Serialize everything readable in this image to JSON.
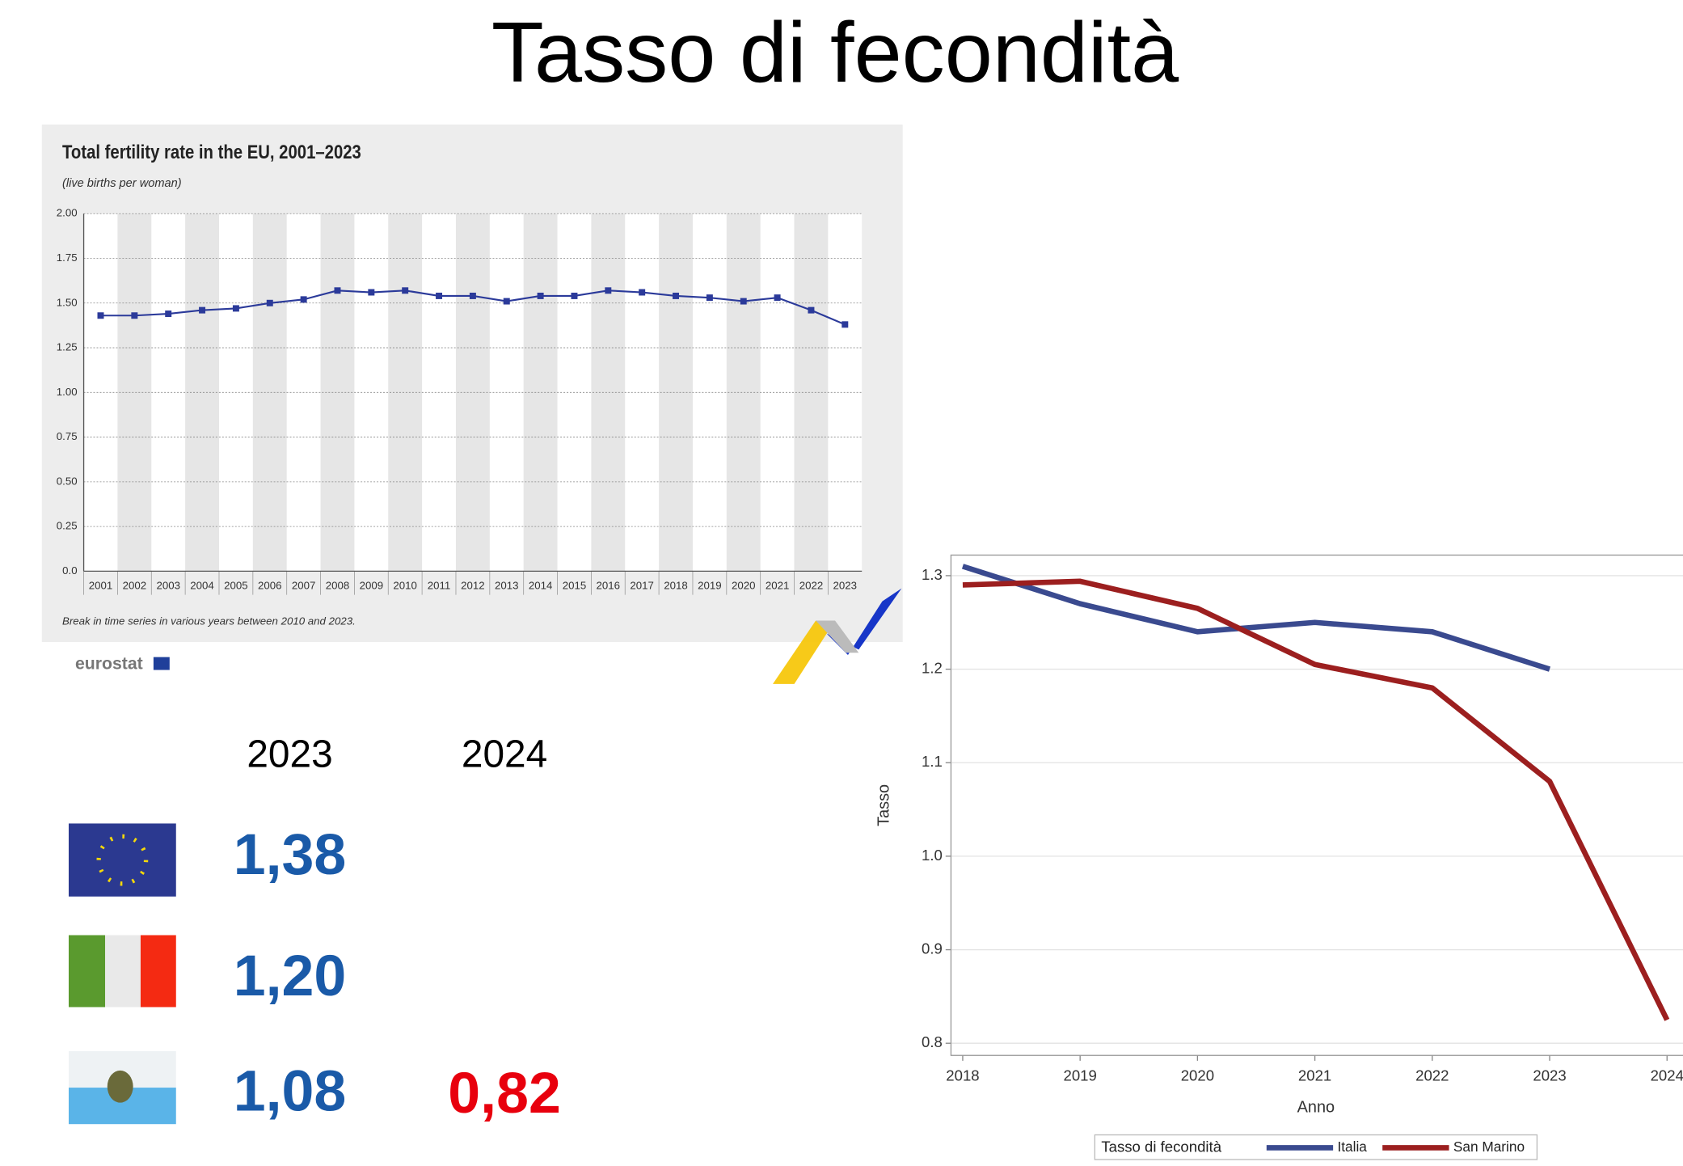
{
  "slide": {
    "title": "Tasso di fecondità",
    "table": {
      "headers": [
        "2023",
        "2024"
      ],
      "rows": [
        [
          "1,38"
        ],
        [
          "1,20"
        ],
        [
          "1,08",
          "0,82"
        ]
      ]
    }
  },
  "chart_data": [
    {
      "type": "line",
      "title": "Total fertility rate in the EU, 2001–2023",
      "subtitle": "(live births per woman)",
      "note": "Break in time series in various years between 2010 and 2023.",
      "source": "eurostat",
      "categories": [
        "2001",
        "2002",
        "2003",
        "2004",
        "2005",
        "2006",
        "2007",
        "2008",
        "2009",
        "2010",
        "2011",
        "2012",
        "2013",
        "2014",
        "2015",
        "2016",
        "2017",
        "2018",
        "2019",
        "2020",
        "2021",
        "2022",
        "2023"
      ],
      "series": [
        {
          "name": "EU",
          "color": "#2b3a9a",
          "values": [
            1.43,
            1.43,
            1.44,
            1.46,
            1.47,
            1.5,
            1.52,
            1.57,
            1.56,
            1.57,
            1.54,
            1.54,
            1.51,
            1.54,
            1.54,
            1.57,
            1.56,
            1.54,
            1.53,
            1.51,
            1.53,
            1.46,
            1.38
          ]
        }
      ],
      "ylim": [
        0,
        2
      ],
      "yticks": [
        {
          "value": 0,
          "label": "0.0"
        },
        {
          "value": 0.25,
          "label": "0.25"
        },
        {
          "value": 0.5,
          "label": "0.50"
        },
        {
          "value": 0.75,
          "label": "0.75"
        },
        {
          "value": 1,
          "label": "1.00"
        },
        {
          "value": 1.25,
          "label": "1.25"
        },
        {
          "value": 1.5,
          "label": "1.50"
        },
        {
          "value": 1.75,
          "label": "1.75"
        },
        {
          "value": 2,
          "label": "2.00"
        }
      ],
      "grid": true,
      "legend": false
    },
    {
      "type": "line",
      "x_label": "Anno",
      "y_label": "Tasso",
      "legend_title": "Tasso di fecondità",
      "x": [
        2018,
        2019,
        2020,
        2021,
        2022,
        2023,
        2024
      ],
      "series": [
        {
          "name": "Italia",
          "color": "#3a4a8f",
          "values": [
            1.31,
            1.27,
            1.24,
            1.25,
            1.24,
            1.2,
            null
          ]
        },
        {
          "name": "San Marino",
          "color": "#9c1f1f",
          "values": [
            1.29,
            1.294,
            1.265,
            1.205,
            1.18,
            1.08,
            0.825
          ]
        }
      ],
      "xlim": [
        2017.9,
        2024.2
      ],
      "xticks": [
        2018,
        2019,
        2020,
        2021,
        2022,
        2023,
        2024
      ],
      "ylim": [
        0.787,
        1.322
      ],
      "yticks": [
        0.8,
        0.9,
        {
          "value": 1,
          "label": "1.0"
        },
        1.1,
        1.2,
        1.3
      ],
      "grid": true,
      "legend": "bottom"
    }
  ]
}
